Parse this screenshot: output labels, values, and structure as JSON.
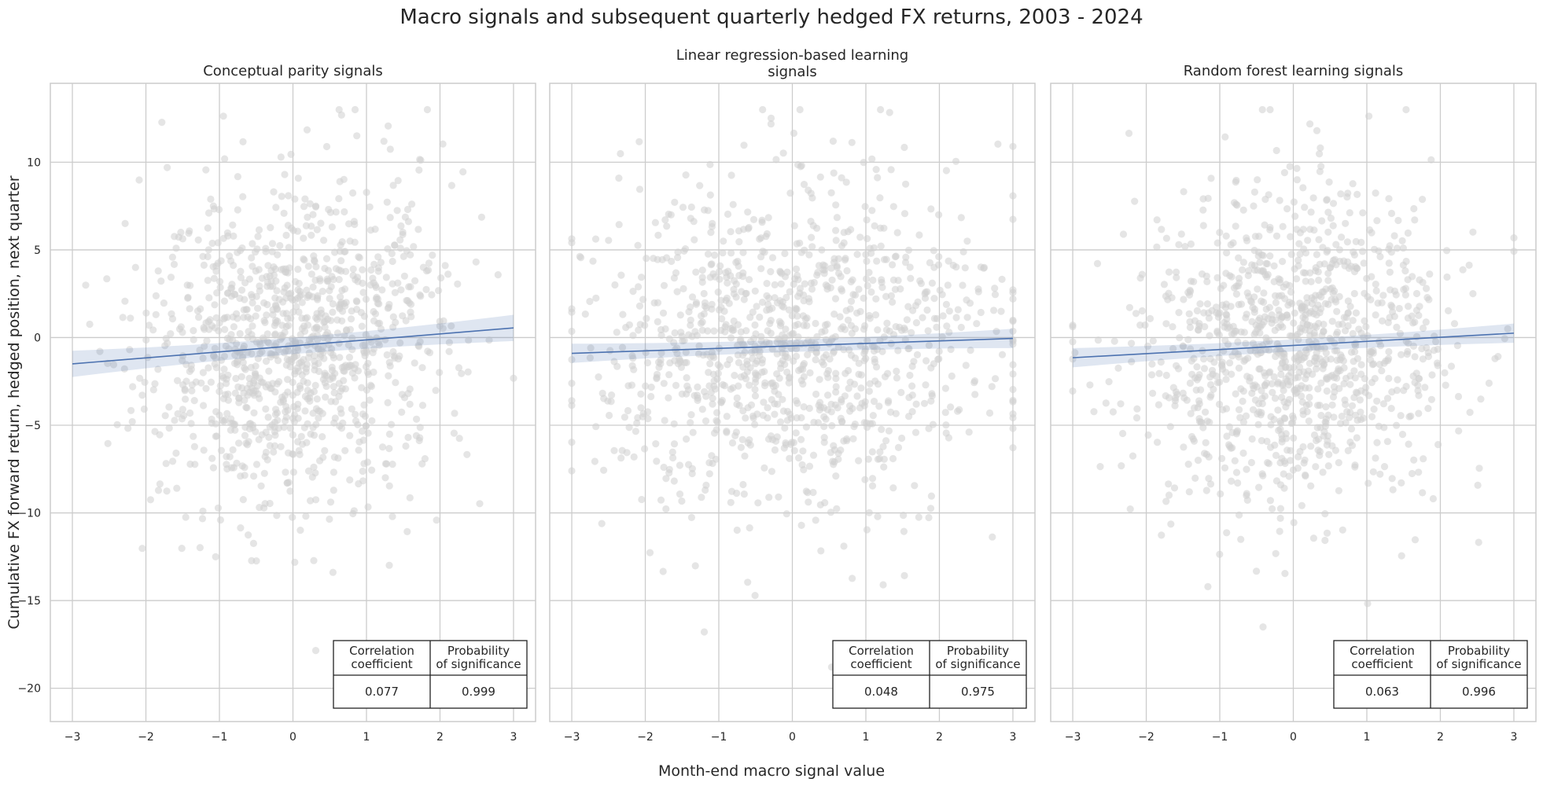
{
  "title": "Macro signals and subsequent quarterly hedged FX returns, 2003 - 2024",
  "xlabel": "Month-end macro signal value",
  "ylabel": "Cumulative FX forward return, hedged position, next quarter",
  "colors": {
    "points": "#cfcfcf",
    "line": "#4c72b0",
    "band": "#4c72b0",
    "grid": "#cccccc",
    "spine": "#cccccc"
  },
  "chart_data": [
    {
      "type": "scatter",
      "title": "Conceptual parity signals",
      "xlim": [
        -3.3,
        3.3
      ],
      "ylim": [
        -21.9,
        14.5
      ],
      "xticks": [
        -3,
        -2,
        -1,
        0,
        1,
        2,
        3
      ],
      "yticks": [
        -20,
        -15,
        -10,
        -5,
        0,
        5,
        10
      ],
      "grid": true,
      "shared_y_labels": true,
      "n_points": 1100,
      "x_spread": 1.0,
      "y_spread": 4.6,
      "seed": 11,
      "regression": {
        "x": [
          -3,
          3
        ],
        "y": [
          -1.5,
          0.55
        ],
        "ci_halfwidth_at_ends": 0.75
      },
      "stats_table": {
        "headers": [
          "Correlation\ncoefficient",
          "Probability\nof significance"
        ],
        "values": [
          "0.077",
          "0.999"
        ]
      }
    },
    {
      "type": "scatter",
      "title": "Linear regression-based learning\nsignals",
      "xlim": [
        -3.3,
        3.3
      ],
      "ylim": [
        -21.9,
        14.5
      ],
      "xticks": [
        -3,
        -2,
        -1,
        0,
        1,
        2,
        3
      ],
      "yticks": [
        -20,
        -15,
        -10,
        -5,
        0,
        5,
        10
      ],
      "grid": true,
      "shared_y_labels": false,
      "n_points": 1100,
      "x_spread": 1.5,
      "y_spread": 4.6,
      "seed": 23,
      "regression": {
        "x": [
          -3,
          3
        ],
        "y": [
          -0.9,
          -0.05
        ],
        "ci_halfwidth_at_ends": 0.55
      },
      "stats_table": {
        "headers": [
          "Correlation\ncoefficient",
          "Probability\nof significance"
        ],
        "values": [
          "0.048",
          "0.975"
        ]
      }
    },
    {
      "type": "scatter",
      "title": "Random forest learning signals",
      "xlim": [
        -3.3,
        3.3
      ],
      "ylim": [
        -21.9,
        14.5
      ],
      "xticks": [
        -3,
        -2,
        -1,
        0,
        1,
        2,
        3
      ],
      "yticks": [
        -20,
        -15,
        -10,
        -5,
        0,
        5,
        10
      ],
      "grid": true,
      "shared_y_labels": false,
      "n_points": 1100,
      "x_spread": 1.05,
      "y_spread": 4.6,
      "seed": 37,
      "regression": {
        "x": [
          -3,
          3
        ],
        "y": [
          -1.15,
          0.25
        ],
        "ci_halfwidth_at_ends": 0.55
      },
      "stats_table": {
        "headers": [
          "Correlation\ncoefficient",
          "Probability\nof significance"
        ],
        "values": [
          "0.063",
          "0.996"
        ]
      }
    }
  ]
}
